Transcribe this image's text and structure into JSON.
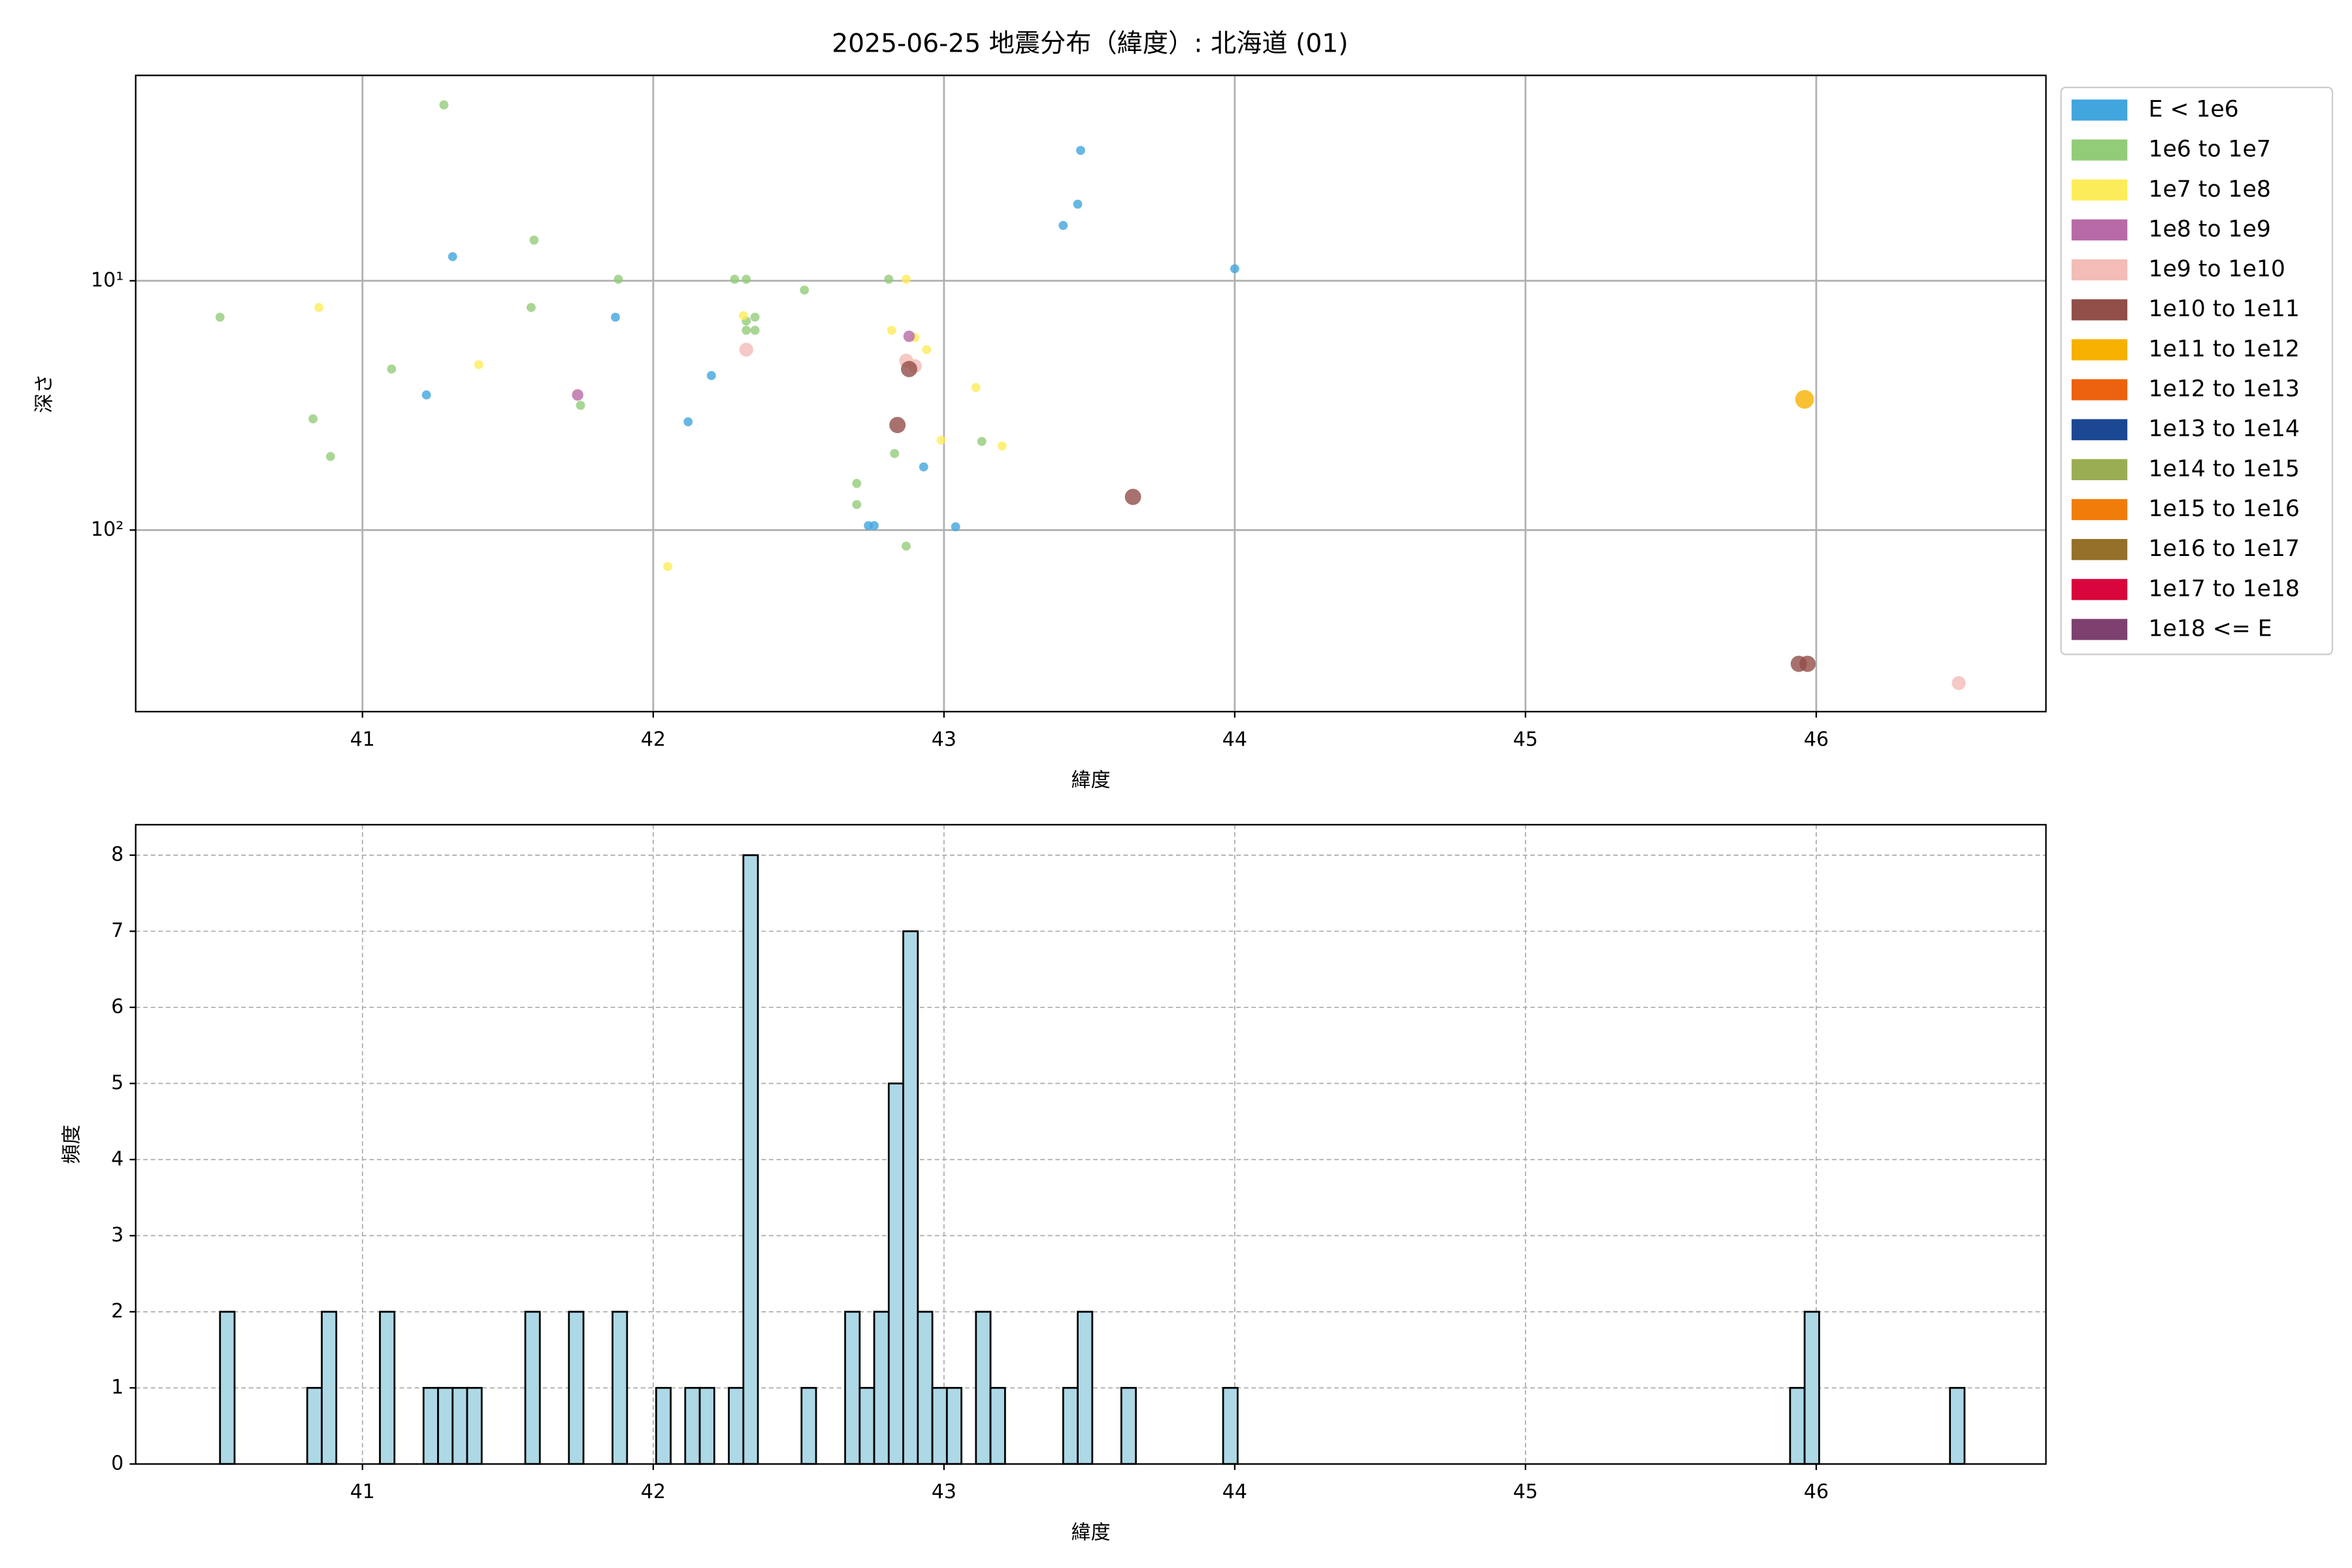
{
  "chart_data": [
    {
      "type": "scatter",
      "title": "2025-06-25 地震分布（緯度）: 北海道 (01)",
      "x_label": "緯度",
      "y_label": "深さ",
      "xlim": [
        40.22,
        46.79
      ],
      "xticks": [
        41,
        42,
        43,
        44,
        45,
        46
      ],
      "ylim": [
        1.5,
        535
      ],
      "y_inverted": true,
      "yscale": "log",
      "yticks": [
        {
          "value": 10,
          "label": "10¹"
        },
        {
          "value": 100,
          "label": "10²"
        }
      ],
      "grid": true,
      "grid_style": "solid",
      "legend": "outside-right",
      "series": [
        {
          "name": "E < 1e6",
          "color": "#41a5de",
          "x": [
            41.31,
            41.22,
            41.87,
            42.12,
            42.2,
            42.74,
            42.76,
            42.93,
            43.04,
            43.41,
            43.46,
            43.47,
            44.0
          ],
          "values": [
            8.0,
            28.7,
            14.0,
            36.8,
            24.0,
            96,
            96,
            55.8,
            97,
            6.0,
            4.93,
            3.0,
            8.95
          ]
        },
        {
          "name": "1e6 to 1e7",
          "color": "#93cc79",
          "x": [
            40.51,
            41.28,
            41.59,
            41.58,
            41.1,
            40.83,
            40.89,
            41.75,
            41.88,
            42.28,
            42.32,
            42.35,
            42.32,
            42.32,
            42.35,
            42.52,
            42.81,
            42.7,
            42.7,
            42.83,
            42.87,
            43.13
          ],
          "values": [
            14.0,
            1.97,
            6.87,
            12.8,
            22.6,
            35.8,
            50.7,
            31.6,
            9.86,
            9.86,
            9.86,
            14.0,
            14.5,
            15.8,
            15.8,
            10.9,
            9.86,
            65,
            79,
            49.3,
            116,
            44.1
          ]
        },
        {
          "name": "1e7 to 1e8",
          "color": "#fdec5a",
          "x": [
            40.85,
            41.4,
            42.05,
            42.31,
            42.87,
            42.82,
            42.9,
            42.94,
            42.99,
            43.11,
            43.2
          ],
          "values": [
            12.8,
            21.7,
            140,
            13.8,
            9.86,
            15.8,
            16.9,
            18.9,
            43.6,
            26.8,
            46.0
          ]
        },
        {
          "name": "1e8 to 1e9",
          "color": "#b86aa6",
          "x": [
            41.74,
            42.88
          ],
          "values": [
            28.7,
            16.7
          ]
        },
        {
          "name": "1e9 to 1e10",
          "color": "#f3bcb6",
          "x": [
            42.32,
            42.87,
            42.9,
            46.49
          ],
          "values": [
            18.9,
            20.9,
            22.0,
            411
          ]
        },
        {
          "name": "1e10 to 1e11",
          "color": "#924e48",
          "x": [
            42.84,
            42.88,
            43.65,
            45.94,
            45.97
          ],
          "values": [
            37.9,
            22.6,
            73.6,
            344,
            344
          ]
        },
        {
          "name": "1e11 to 1e12",
          "color": "#f6b100",
          "x": [
            45.96
          ],
          "values": [
            29.9
          ]
        },
        {
          "name": "1e12 to 1e13",
          "color": "#ec620f",
          "x": [],
          "values": []
        },
        {
          "name": "1e13 to 1e14",
          "color": "#1b4793",
          "x": [],
          "values": []
        },
        {
          "name": "1e14 to 1e15",
          "color": "#9bad52",
          "x": [],
          "values": []
        },
        {
          "name": "1e15 to 1e16",
          "color": "#f07d0a",
          "x": [],
          "values": []
        },
        {
          "name": "1e16 to 1e17",
          "color": "#95702a",
          "x": [],
          "values": []
        },
        {
          "name": "1e17 to 1e18",
          "color": "#d8063c",
          "x": [],
          "values": []
        },
        {
          "name": "1e18 <= E",
          "color": "#7e416f",
          "x": [],
          "values": []
        }
      ]
    },
    {
      "type": "histogram",
      "x_label": "緯度",
      "y_label": "頻度",
      "color": "#add8e6",
      "edgecolor": "#000000",
      "xlim": [
        40.22,
        46.79
      ],
      "xticks": [
        41,
        42,
        43,
        44,
        45,
        46
      ],
      "ylim": [
        0,
        8.4
      ],
      "yticks": [
        0,
        1,
        2,
        3,
        4,
        5,
        6,
        7,
        8
      ],
      "grid": true,
      "grid_style": "dashed",
      "bins": [
        40.51,
        40.56,
        40.61,
        40.66,
        40.71,
        40.76,
        40.81,
        40.86,
        40.91,
        40.96,
        41.01,
        41.06,
        41.11,
        41.16,
        41.21,
        41.26,
        41.31,
        41.36,
        41.41,
        41.46,
        41.51,
        41.56,
        41.61,
        41.66,
        41.71,
        41.76,
        41.81,
        41.86,
        41.91,
        41.96,
        42.01,
        42.06,
        42.11,
        42.16,
        42.21,
        42.26,
        42.31,
        42.36,
        42.41,
        42.46,
        42.51,
        42.56,
        42.61,
        42.66,
        42.71,
        42.76,
        42.81,
        42.86,
        42.91,
        42.96,
        43.01,
        43.06,
        43.11,
        43.16,
        43.21,
        43.26,
        43.31,
        43.36,
        43.41,
        43.46,
        43.51,
        43.56,
        43.61,
        43.66,
        43.71,
        43.76,
        43.81,
        43.86,
        43.91,
        43.96,
        44.01,
        44.06,
        44.11,
        44.16,
        44.21,
        44.26,
        44.31,
        44.36,
        44.41,
        44.46,
        44.51,
        44.56,
        44.61,
        44.66,
        44.71,
        44.76,
        44.81,
        44.86,
        44.91,
        44.96,
        45.01,
        45.06,
        45.11,
        45.16,
        45.21,
        45.26,
        45.31,
        45.36,
        45.41,
        45.46,
        45.51,
        45.56,
        45.61,
        45.66,
        45.71,
        45.76,
        45.81,
        45.86,
        45.91,
        45.96,
        46.01,
        46.06,
        46.11,
        46.16,
        46.21,
        46.26,
        46.31,
        46.36,
        46.41,
        46.46,
        46.51
      ],
      "values": [
        2,
        0,
        0,
        0,
        0,
        0,
        1,
        2,
        0,
        0,
        0,
        2,
        0,
        0,
        1,
        1,
        1,
        1,
        0,
        0,
        0,
        2,
        0,
        0,
        2,
        0,
        0,
        2,
        0,
        0,
        1,
        0,
        1,
        1,
        0,
        1,
        8,
        0,
        0,
        0,
        1,
        0,
        0,
        2,
        1,
        2,
        5,
        7,
        2,
        1,
        1,
        0,
        2,
        1,
        0,
        0,
        0,
        0,
        1,
        2,
        0,
        0,
        1,
        0,
        0,
        0,
        0,
        0,
        0,
        1,
        0,
        0,
        0,
        0,
        0,
        0,
        0,
        0,
        0,
        0,
        0,
        0,
        0,
        0,
        0,
        0,
        0,
        0,
        0,
        0,
        0,
        0,
        0,
        0,
        0,
        0,
        0,
        0,
        0,
        0,
        0,
        0,
        0,
        0,
        0,
        0,
        0,
        0,
        1,
        2,
        0,
        0,
        0,
        0,
        0,
        0,
        0,
        0,
        0,
        1
      ]
    }
  ]
}
